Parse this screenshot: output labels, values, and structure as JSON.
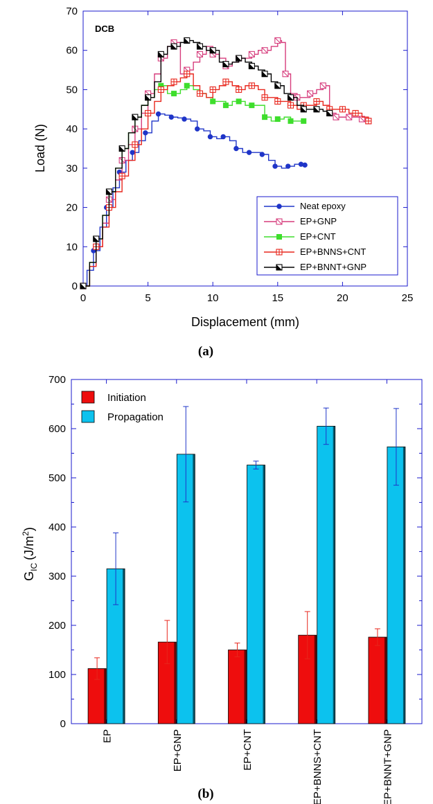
{
  "chart_data": [
    {
      "type": "line",
      "annotation": "DCB",
      "panel_label": "(a)",
      "xlabel": "Displacement (mm)",
      "ylabel": "Load (N)",
      "xlim": [
        0,
        25
      ],
      "ylim": [
        0,
        70
      ],
      "xticks": [
        "0",
        "5",
        "10",
        "15",
        "20",
        "25"
      ],
      "yticks": [
        "0",
        "10",
        "20",
        "30",
        "40",
        "50",
        "60",
        "70"
      ],
      "legend": "bottom-right",
      "series": [
        {
          "name": "Neat epoxy",
          "color": "#1f35c8",
          "marker": "circle-filled",
          "x": [
            0,
            0.3,
            0.8,
            1.3,
            1.8,
            2.3,
            2.8,
            3.3,
            3.8,
            4.3,
            4.8,
            5.3,
            5.8,
            6.3,
            6.8,
            7.3,
            7.8,
            8.3,
            8.8,
            9.3,
            9.8,
            10.3,
            10.8,
            11.3,
            11.8,
            12.3,
            12.8,
            13.3,
            13.8,
            14.3,
            14.8,
            15.3,
            15.8,
            16.3,
            16.8,
            17.1
          ],
          "y": [
            0,
            4,
            9,
            15,
            20,
            25,
            29,
            32,
            34,
            37,
            39,
            42,
            43.8,
            43.5,
            43,
            42.8,
            42.5,
            42,
            40,
            39.5,
            38,
            37.5,
            38,
            37,
            35,
            34,
            34,
            34,
            33.5,
            32,
            30.5,
            30,
            30.5,
            31,
            31,
            30.8
          ]
        },
        {
          "name": "EP+GNP",
          "color": "#d63c7c",
          "marker": "square-slash-open",
          "x": [
            0,
            0.5,
            1,
            1.5,
            2,
            2.5,
            3,
            3.5,
            4,
            4.5,
            5,
            5.5,
            6,
            6.5,
            7,
            7.5,
            8,
            8.5,
            9,
            9.5,
            10,
            10.5,
            11,
            11.5,
            12,
            12.5,
            13,
            13.5,
            14,
            14.5,
            15,
            15.3,
            15.6,
            16,
            16.5,
            17,
            17.5,
            18,
            18.5,
            19,
            19.5,
            20,
            20.5,
            21,
            21.5,
            22
          ],
          "y": [
            0,
            5,
            10,
            16,
            22,
            27,
            32,
            36,
            40,
            44,
            49,
            54,
            58,
            61,
            62,
            54,
            55,
            57,
            59,
            61,
            59,
            58,
            56,
            57,
            58,
            58,
            59,
            60,
            60,
            61,
            62.5,
            62,
            54,
            49,
            48,
            48,
            49,
            50,
            51,
            44,
            43,
            43,
            43,
            43,
            42.5,
            42
          ]
        },
        {
          "name": "EP+CNT",
          "color": "#3ede2c",
          "marker": "square-filled",
          "x": [
            0,
            0.5,
            1,
            1.5,
            2,
            2.5,
            3,
            3.5,
            4,
            4.5,
            5,
            5.5,
            6,
            6.5,
            7,
            7.5,
            8,
            8.5,
            9,
            9.5,
            10,
            10.5,
            11,
            11.5,
            12,
            12.5,
            13,
            13.5,
            14,
            14.5,
            15,
            15.5,
            16,
            16.5,
            17
          ],
          "y": [
            0,
            6,
            12,
            18,
            24,
            30,
            35,
            39,
            43,
            46,
            48,
            50,
            51,
            49,
            49,
            50,
            51,
            50,
            49,
            48,
            47,
            47,
            46,
            47,
            47,
            46,
            46,
            46,
            43,
            42,
            42.5,
            43,
            42,
            42,
            42
          ]
        },
        {
          "name": "EP+BNNS+CNT",
          "color": "#e8261c",
          "marker": "cross-square-open",
          "x": [
            0,
            0.5,
            1,
            1.5,
            2,
            2.5,
            3,
            3.5,
            4,
            4.5,
            5,
            5.5,
            6,
            6.5,
            7,
            7.5,
            8,
            8.5,
            9,
            9.5,
            10,
            10.5,
            11,
            11.5,
            12,
            12.5,
            13,
            13.5,
            14,
            14.5,
            15,
            15.5,
            16,
            16.5,
            17,
            17.5,
            18,
            18.5,
            19,
            19.5,
            20,
            20.5,
            21,
            21.5,
            22
          ],
          "y": [
            0,
            5,
            10,
            15,
            20,
            24,
            28,
            32,
            36,
            40,
            44,
            47,
            50,
            51,
            52,
            53,
            54,
            51,
            49,
            48,
            50,
            51,
            52,
            51,
            50,
            51,
            51,
            50,
            48,
            48,
            47,
            47,
            46,
            45,
            46,
            46,
            47,
            46,
            45,
            45,
            45,
            44,
            44,
            43,
            42
          ]
        },
        {
          "name": "EP+BNNT+GNP",
          "color": "#000000",
          "marker": "square-half-filled",
          "x": [
            0,
            0.5,
            1,
            1.5,
            2,
            2.5,
            3,
            3.5,
            4,
            4.5,
            5,
            5.5,
            6,
            6.5,
            7,
            7.5,
            8,
            8.5,
            9,
            9.5,
            10,
            10.5,
            11,
            11.5,
            12,
            12.5,
            13,
            13.5,
            14,
            14.5,
            15,
            15.5,
            16,
            16.5,
            17,
            17.5,
            18,
            18.5,
            19
          ],
          "y": [
            0,
            6,
            12,
            18,
            24,
            30,
            35,
            39,
            43,
            46,
            48,
            52,
            59,
            61,
            61,
            62,
            62.5,
            62,
            61,
            60,
            60,
            57,
            56.5,
            57,
            58,
            57,
            56,
            55,
            54,
            52,
            51,
            49,
            48,
            46,
            45,
            45,
            45,
            44.5,
            44
          ]
        }
      ]
    },
    {
      "type": "bar",
      "panel_label": "(b)",
      "ylabel_main": "G",
      "ylabel_sub": "IC",
      "ylabel_unit": "(J/m",
      "ylabel_unit_sup": "2",
      "ylabel_unit_close": ")",
      "ylim": [
        0,
        700
      ],
      "yticks": [
        "0",
        "100",
        "200",
        "300",
        "400",
        "500",
        "600",
        "700"
      ],
      "legend": "top-left",
      "categories": [
        "EP",
        "EP+GNP",
        "EP+CNT",
        "EP+BNNS+CNT",
        "EP+BNNT+GNP"
      ],
      "series": [
        {
          "name": "Initiation",
          "color": "#ee0d0d",
          "errcolor": "#e8261c",
          "values": [
            112,
            166,
            150,
            180,
            176
          ],
          "errors": [
            22,
            44,
            14,
            48,
            17
          ]
        },
        {
          "name": "Propagation",
          "color": "#0cc2ee",
          "errcolor": "#1f35c8",
          "values": [
            315,
            548,
            526,
            605,
            563
          ],
          "errors": [
            73,
            97,
            8,
            37,
            78
          ]
        }
      ]
    }
  ]
}
